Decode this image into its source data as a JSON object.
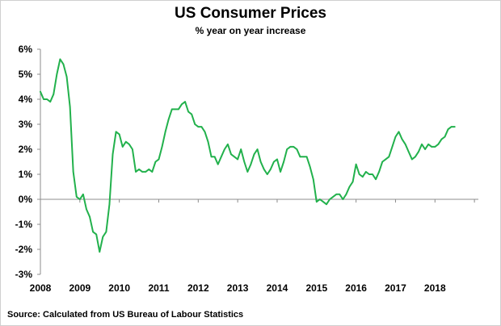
{
  "chart_data": {
    "type": "line",
    "title": "US Consumer Prices",
    "subtitle": "% year on year increase",
    "source": "Source: Calculated from US Bureau of Labour Statistics",
    "xlabel": "",
    "ylabel": "",
    "ylim": [
      -3,
      6
    ],
    "xlim": [
      2008,
      2019.1
    ],
    "x_tick_labels": [
      "2008",
      "2009",
      "2010",
      "2011",
      "2012",
      "2013",
      "2014",
      "2015",
      "2016",
      "2017",
      "2018"
    ],
    "y_tick_labels": [
      "6%",
      "5%",
      "4%",
      "3%",
      "2%",
      "1%",
      "0%",
      "-1%",
      "-2%",
      "-3%"
    ],
    "y_tick_values": [
      6,
      5,
      4,
      3,
      2,
      1,
      0,
      -1,
      -2,
      -3
    ],
    "grid": false,
    "line_color": "#22b14c",
    "series": [
      {
        "x": [
          2008.0,
          2008.083,
          2008.167,
          2008.25,
          2008.333,
          2008.417,
          2008.5,
          2008.583,
          2008.667,
          2008.75,
          2008.833,
          2008.917,
          2009.0,
          2009.083,
          2009.167,
          2009.25,
          2009.333,
          2009.417,
          2009.5,
          2009.583,
          2009.667,
          2009.75,
          2009.833,
          2009.917,
          2010.0,
          2010.083,
          2010.167,
          2010.25,
          2010.333,
          2010.417,
          2010.5,
          2010.583,
          2010.667,
          2010.75,
          2010.833,
          2010.917,
          2011.0,
          2011.083,
          2011.167,
          2011.25,
          2011.333,
          2011.417,
          2011.5,
          2011.583,
          2011.667,
          2011.75,
          2011.833,
          2011.917,
          2012.0,
          2012.083,
          2012.167,
          2012.25,
          2012.333,
          2012.417,
          2012.5,
          2012.583,
          2012.667,
          2012.75,
          2012.833,
          2012.917,
          2013.0,
          2013.083,
          2013.167,
          2013.25,
          2013.333,
          2013.417,
          2013.5,
          2013.583,
          2013.667,
          2013.75,
          2013.833,
          2013.917,
          2014.0,
          2014.083,
          2014.167,
          2014.25,
          2014.333,
          2014.417,
          2014.5,
          2014.583,
          2014.667,
          2014.75,
          2014.833,
          2014.917,
          2015.0,
          2015.083,
          2015.167,
          2015.25,
          2015.333,
          2015.417,
          2015.5,
          2015.583,
          2015.667,
          2015.75,
          2015.833,
          2015.917,
          2016.0,
          2016.083,
          2016.167,
          2016.25,
          2016.333,
          2016.417,
          2016.5,
          2016.583,
          2016.667,
          2016.75,
          2016.833,
          2016.917,
          2017.0,
          2017.083,
          2017.167,
          2017.25,
          2017.333,
          2017.417,
          2017.5,
          2017.583,
          2017.667,
          2017.75,
          2017.833,
          2017.917,
          2018.0,
          2018.083,
          2018.167,
          2018.25,
          2018.333,
          2018.417,
          2018.5
        ],
        "y": [
          4.3,
          4.0,
          4.0,
          3.9,
          4.2,
          5.0,
          5.6,
          5.4,
          4.9,
          3.7,
          1.1,
          0.1,
          0.0,
          0.2,
          -0.4,
          -0.7,
          -1.3,
          -1.4,
          -2.1,
          -1.5,
          -1.3,
          -0.2,
          1.8,
          2.7,
          2.6,
          2.1,
          2.3,
          2.2,
          2.0,
          1.1,
          1.2,
          1.1,
          1.1,
          1.2,
          1.1,
          1.5,
          1.6,
          2.1,
          2.7,
          3.2,
          3.6,
          3.6,
          3.6,
          3.8,
          3.9,
          3.5,
          3.4,
          3.0,
          2.9,
          2.9,
          2.7,
          2.3,
          1.7,
          1.7,
          1.4,
          1.7,
          2.0,
          2.2,
          1.8,
          1.7,
          1.6,
          2.0,
          1.5,
          1.1,
          1.4,
          1.8,
          2.0,
          1.5,
          1.2,
          1.0,
          1.2,
          1.5,
          1.6,
          1.1,
          1.5,
          2.0,
          2.1,
          2.1,
          2.0,
          1.7,
          1.7,
          1.7,
          1.3,
          0.8,
          -0.1,
          0.0,
          -0.1,
          -0.2,
          0.0,
          0.1,
          0.2,
          0.2,
          0.0,
          0.2,
          0.5,
          0.7,
          1.4,
          1.0,
          0.9,
          1.1,
          1.0,
          1.0,
          0.8,
          1.1,
          1.5,
          1.6,
          1.7,
          2.1,
          2.5,
          2.7,
          2.4,
          2.2,
          1.9,
          1.6,
          1.7,
          1.9,
          2.2,
          2.0,
          2.2,
          2.1,
          2.1,
          2.2,
          2.4,
          2.5,
          2.8,
          2.9,
          2.9
        ]
      }
    ]
  }
}
